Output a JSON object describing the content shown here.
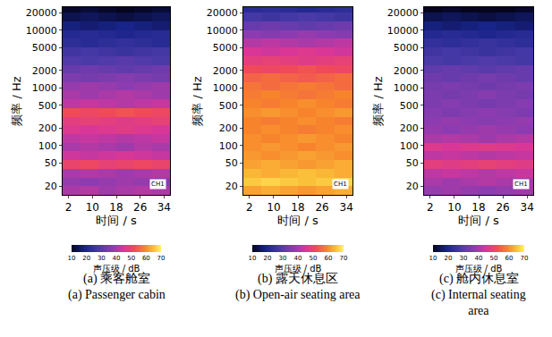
{
  "chart_data": [
    {
      "type": "heatmap",
      "title": "(a) 乘客舱室",
      "subtitle": "(a) Passenger cabin",
      "xlabel": "时间 / s",
      "ylabel": "频率 / Hz",
      "log": "y",
      "xlim": [
        0,
        36
      ],
      "xticks": [
        2,
        10,
        18,
        26,
        34
      ],
      "ylim": [
        14,
        25000
      ],
      "yticks": [
        20,
        50,
        100,
        200,
        500,
        1000,
        2000,
        5000,
        10000,
        20000
      ],
      "annotations": [
        "CH1"
      ],
      "x": [
        0,
        6,
        12,
        18,
        24,
        30,
        36
      ],
      "y": [
        14,
        20,
        28,
        40,
        56,
        80,
        112,
        160,
        225,
        315,
        450,
        630,
        900,
        1250,
        1800,
        2500,
        3550,
        5000,
        7100,
        10000,
        14000,
        20000,
        25000
      ],
      "z": [
        [
          40,
          41,
          39,
          40,
          41,
          40
        ],
        [
          38,
          37,
          38,
          39,
          38,
          37
        ],
        [
          40,
          41,
          40,
          39,
          40,
          41
        ],
        [
          50,
          51,
          49,
          50,
          51,
          50
        ],
        [
          44,
          43,
          44,
          45,
          44,
          43
        ],
        [
          40,
          41,
          40,
          39,
          41,
          40
        ],
        [
          42,
          43,
          42,
          41,
          42,
          43
        ],
        [
          46,
          45,
          46,
          47,
          46,
          45
        ],
        [
          48,
          49,
          48,
          47,
          48,
          49
        ],
        [
          52,
          51,
          52,
          53,
          52,
          51
        ],
        [
          42,
          43,
          42,
          41,
          42,
          43
        ],
        [
          40,
          39,
          40,
          41,
          40,
          39
        ],
        [
          38,
          39,
          38,
          37,
          38,
          39
        ],
        [
          35,
          34,
          35,
          36,
          35,
          34
        ],
        [
          32,
          33,
          32,
          31,
          32,
          33
        ],
        [
          29,
          28,
          29,
          30,
          29,
          28
        ],
        [
          26,
          27,
          26,
          25,
          26,
          27
        ],
        [
          23,
          22,
          23,
          24,
          23,
          22
        ],
        [
          21,
          22,
          21,
          20,
          21,
          22
        ],
        [
          18,
          17,
          18,
          19,
          18,
          17
        ],
        [
          14,
          15,
          14,
          13,
          14,
          15
        ],
        [
          11,
          12,
          11,
          10,
          11,
          12
        ]
      ],
      "colorbar": {
        "title": "声压级 / dB",
        "range": [
          10,
          70
        ],
        "ticks": [
          10,
          20,
          30,
          40,
          50,
          60,
          70
        ]
      }
    },
    {
      "type": "heatmap",
      "title": "(b) 露天休息区",
      "subtitle": "(b) Open-air seating area",
      "xlabel": "时间 / s",
      "ylabel": "频率 / Hz",
      "log": "y",
      "xlim": [
        0,
        36
      ],
      "xticks": [
        2,
        10,
        18,
        26,
        34
      ],
      "ylim": [
        14,
        25000
      ],
      "yticks": [
        20,
        50,
        100,
        200,
        500,
        1000,
        2000,
        5000,
        10000,
        20000
      ],
      "annotations": [
        "CH1"
      ],
      "x": [
        0,
        6,
        12,
        18,
        24,
        30,
        36
      ],
      "y": [
        14,
        20,
        28,
        40,
        56,
        80,
        112,
        160,
        225,
        315,
        450,
        630,
        900,
        1250,
        1800,
        2500,
        3550,
        5000,
        7100,
        10000,
        14000,
        20000,
        25000
      ],
      "z": [
        [
          62,
          63,
          62,
          61,
          62,
          63
        ],
        [
          66,
          67,
          66,
          65,
          66,
          67
        ],
        [
          64,
          63,
          64,
          65,
          64,
          63
        ],
        [
          62,
          63,
          62,
          61,
          62,
          63
        ],
        [
          61,
          60,
          61,
          62,
          61,
          60
        ],
        [
          60,
          61,
          60,
          59,
          60,
          61
        ],
        [
          60,
          59,
          60,
          61,
          60,
          59
        ],
        [
          59,
          60,
          59,
          58,
          59,
          60
        ],
        [
          59,
          58,
          59,
          60,
          59,
          58
        ],
        [
          60,
          61,
          60,
          59,
          60,
          61
        ],
        [
          59,
          58,
          59,
          60,
          59,
          58
        ],
        [
          58,
          59,
          58,
          57,
          58,
          59
        ],
        [
          57,
          56,
          57,
          58,
          57,
          56
        ],
        [
          55,
          56,
          55,
          54,
          55,
          56
        ],
        [
          52,
          51,
          52,
          53,
          52,
          51
        ],
        [
          48,
          49,
          48,
          47,
          48,
          49
        ],
        [
          45,
          44,
          45,
          46,
          45,
          44
        ],
        [
          41,
          42,
          41,
          40,
          41,
          42
        ],
        [
          37,
          36,
          37,
          38,
          37,
          36
        ],
        [
          32,
          33,
          32,
          31,
          32,
          33
        ],
        [
          27,
          26,
          27,
          28,
          27,
          26
        ],
        [
          22,
          23,
          22,
          21,
          22,
          23
        ]
      ],
      "colorbar": {
        "title": "声压级 / dB",
        "range": [
          10,
          70
        ],
        "ticks": [
          10,
          20,
          30,
          40,
          50,
          60,
          70
        ]
      }
    },
    {
      "type": "heatmap",
      "title": "(c) 舱内休息室",
      "subtitle": "(c) Internal seating area",
      "xlabel": "时间 / s",
      "ylabel": "频率 / Hz",
      "log": "y",
      "xlim": [
        0,
        36
      ],
      "xticks": [
        2,
        10,
        18,
        26,
        34
      ],
      "ylim": [
        14,
        25000
      ],
      "yticks": [
        20,
        50,
        100,
        200,
        500,
        1000,
        2000,
        5000,
        10000,
        20000
      ],
      "annotations": [
        "CH1"
      ],
      "x": [
        0,
        6,
        12,
        18,
        24,
        30,
        36
      ],
      "y": [
        14,
        20,
        28,
        40,
        56,
        80,
        112,
        160,
        225,
        315,
        450,
        630,
        900,
        1250,
        1800,
        2500,
        3550,
        5000,
        7100,
        10000,
        14000,
        20000,
        25000
      ],
      "z": [
        [
          38,
          39,
          38,
          37,
          38,
          39
        ],
        [
          40,
          39,
          40,
          41,
          40,
          39
        ],
        [
          42,
          43,
          42,
          41,
          42,
          43
        ],
        [
          48,
          47,
          48,
          49,
          48,
          47
        ],
        [
          42,
          43,
          42,
          41,
          42,
          43
        ],
        [
          46,
          45,
          46,
          47,
          46,
          45
        ],
        [
          40,
          41,
          40,
          39,
          40,
          41
        ],
        [
          38,
          37,
          38,
          39,
          38,
          37
        ],
        [
          37,
          38,
          37,
          36,
          37,
          38
        ],
        [
          36,
          35,
          36,
          37,
          36,
          35
        ],
        [
          35,
          36,
          35,
          34,
          35,
          36
        ],
        [
          35,
          34,
          35,
          36,
          35,
          34
        ],
        [
          34,
          35,
          34,
          33,
          34,
          35
        ],
        [
          33,
          32,
          33,
          34,
          33,
          32
        ],
        [
          31,
          32,
          31,
          30,
          31,
          32
        ],
        [
          28,
          27,
          28,
          29,
          28,
          27
        ],
        [
          26,
          27,
          26,
          25,
          26,
          27
        ],
        [
          24,
          23,
          24,
          25,
          24,
          23
        ],
        [
          21,
          22,
          21,
          20,
          21,
          22
        ],
        [
          18,
          17,
          18,
          19,
          18,
          17
        ],
        [
          14,
          15,
          14,
          13,
          14,
          15
        ],
        [
          10,
          11,
          10,
          9,
          10,
          11
        ]
      ],
      "colorbar": {
        "title": "声压级 / dB",
        "range": [
          10,
          70
        ],
        "ticks": [
          10,
          20,
          30,
          40,
          50,
          60,
          70
        ]
      }
    }
  ]
}
